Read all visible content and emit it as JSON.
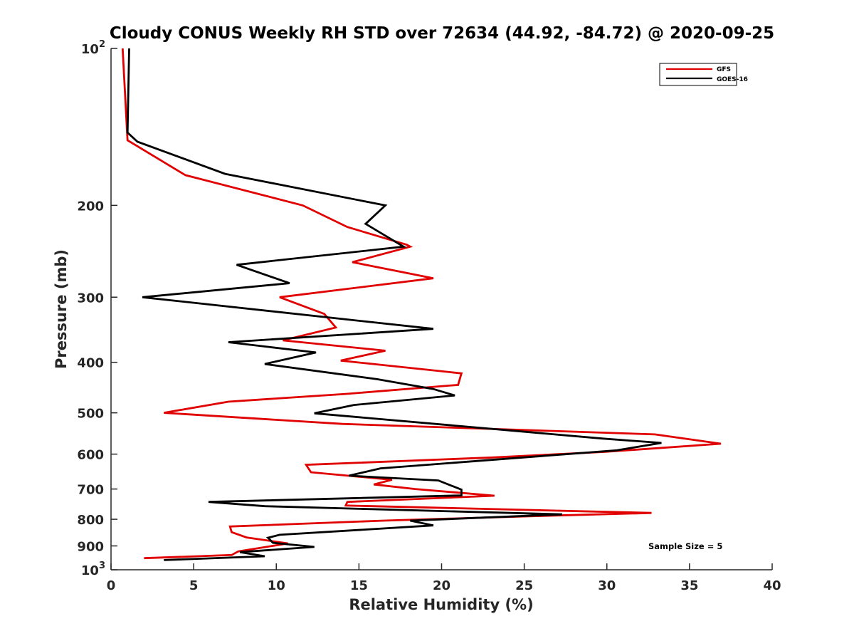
{
  "chart_data": {
    "type": "line",
    "title": "Cloudy CONUS Weekly RH STD over 72634 (44.92, -84.72) @ 2020-09-25",
    "xlabel": "Relative Humidity (%)",
    "ylabel": "Pressure (mb)",
    "xlim": [
      0,
      40
    ],
    "ylim": [
      100,
      1000
    ],
    "yscale": "log",
    "y_reversed": true,
    "x_ticks": [
      "0",
      "5",
      "10",
      "15",
      "20",
      "25",
      "30",
      "35",
      "40"
    ],
    "y_ticks": [
      {
        "value": 100,
        "base": "10",
        "exp": "2"
      },
      {
        "value": 200,
        "label": "200"
      },
      {
        "value": 300,
        "label": "300"
      },
      {
        "value": 400,
        "label": "400"
      },
      {
        "value": 500,
        "label": "500"
      },
      {
        "value": 600,
        "label": "600"
      },
      {
        "value": 700,
        "label": "700"
      },
      {
        "value": 800,
        "label": "800"
      },
      {
        "value": 900,
        "label": "900"
      },
      {
        "value": 1000,
        "base": "10",
        "exp": "3"
      }
    ],
    "legend_position": "top-right",
    "grid": false,
    "annotation": "Sample Size = 5",
    "series": [
      {
        "name": "GFS",
        "color": "#e00000",
        "points": [
          [
            0.7,
            100
          ],
          [
            1.0,
            150
          ],
          [
            4.5,
            175
          ],
          [
            11.6,
            200
          ],
          [
            14.3,
            220
          ],
          [
            17.9,
            238
          ],
          [
            18.1,
            240
          ],
          [
            14.6,
            257
          ],
          [
            19.5,
            276
          ],
          [
            10.2,
            300
          ],
          [
            12.9,
            323
          ],
          [
            13.6,
            343
          ],
          [
            10.4,
            363
          ],
          [
            16.6,
            380
          ],
          [
            13.9,
            397
          ],
          [
            21.2,
            420
          ],
          [
            21.0,
            442
          ],
          [
            14.2,
            460
          ],
          [
            7.1,
            476
          ],
          [
            3.2,
            500
          ],
          [
            14.0,
            525
          ],
          [
            32.9,
            550
          ],
          [
            36.9,
            573
          ],
          [
            29.9,
            594
          ],
          [
            23.1,
            609
          ],
          [
            11.8,
            629
          ],
          [
            12.1,
            650
          ],
          [
            17.0,
            672
          ],
          [
            15.9,
            686
          ],
          [
            18.4,
            700
          ],
          [
            23.2,
            721
          ],
          [
            14.3,
            741
          ],
          [
            14.2,
            753
          ],
          [
            32.7,
            778
          ],
          [
            25.5,
            789
          ],
          [
            16.5,
            805
          ],
          [
            7.2,
            826
          ],
          [
            7.3,
            847
          ],
          [
            8.2,
            867
          ],
          [
            10.7,
            890
          ],
          [
            7.7,
            922
          ],
          [
            7.3,
            937
          ],
          [
            2.0,
            950
          ]
        ]
      },
      {
        "name": "GOES-16",
        "color": "#000000",
        "points": [
          [
            1.1,
            100
          ],
          [
            1.0,
            145
          ],
          [
            1.6,
            151
          ],
          [
            6.9,
            174
          ],
          [
            16.6,
            200
          ],
          [
            15.4,
            217
          ],
          [
            17.7,
            240
          ],
          [
            7.6,
            260
          ],
          [
            10.8,
            282
          ],
          [
            1.9,
            300
          ],
          [
            19.5,
            345
          ],
          [
            7.1,
            366
          ],
          [
            12.4,
            383
          ],
          [
            9.3,
            403
          ],
          [
            16.1,
            431
          ],
          [
            19.5,
            450
          ],
          [
            20.8,
            463
          ],
          [
            14.7,
            483
          ],
          [
            12.3,
            501
          ],
          [
            29.7,
            560
          ],
          [
            33.3,
            571
          ],
          [
            30.6,
            590
          ],
          [
            16.3,
            639
          ],
          [
            14.4,
            660
          ],
          [
            19.8,
            674
          ],
          [
            21.2,
            702
          ],
          [
            21.2,
            720
          ],
          [
            5.9,
            741
          ],
          [
            9.3,
            755
          ],
          [
            27.3,
            783
          ],
          [
            18.1,
            805
          ],
          [
            19.5,
            822
          ],
          [
            10.2,
            857
          ],
          [
            9.5,
            868
          ],
          [
            9.8,
            888
          ],
          [
            12.3,
            904
          ],
          [
            7.8,
            925
          ],
          [
            9.3,
            942
          ],
          [
            3.2,
            958
          ]
        ]
      }
    ]
  }
}
